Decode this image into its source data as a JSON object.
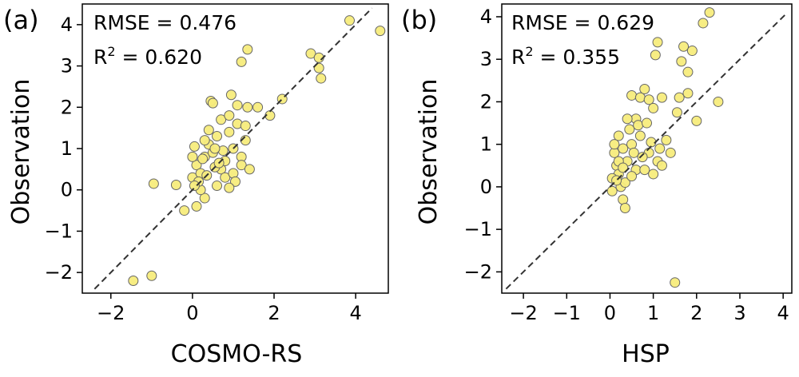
{
  "chart_data": [
    {
      "type": "scatter",
      "panel_label": "(a)",
      "xlabel": "COSMO-RS",
      "ylabel": "Observation",
      "annotations": {
        "rmse": "RMSE = 0.476",
        "r2_prefix": "R",
        "r2_sup": "2",
        "r2_value": " = 0.620"
      },
      "xlim": [
        -2.7,
        4.8
      ],
      "ylim": [
        -2.5,
        4.5
      ],
      "xticks": [
        -2,
        0,
        2,
        4
      ],
      "xtick_labels": [
        "−2",
        "0",
        "2",
        "4"
      ],
      "yticks": [
        -2,
        -1,
        0,
        1,
        2,
        3,
        4
      ],
      "ytick_labels": [
        "−2",
        "−1",
        "0",
        "1",
        "2",
        "3",
        "4"
      ],
      "reference_line": "y = x",
      "points": [
        [
          -1.45,
          -2.2
        ],
        [
          -1.0,
          -2.08
        ],
        [
          -0.95,
          0.15
        ],
        [
          -0.4,
          0.12
        ],
        [
          -0.2,
          -0.5
        ],
        [
          0.0,
          0.3
        ],
        [
          0.05,
          1.05
        ],
        [
          0.1,
          0.6
        ],
        [
          0.2,
          0.4
        ],
        [
          0.3,
          0.8
        ],
        [
          0.4,
          1.1
        ],
        [
          0.5,
          0.9
        ],
        [
          0.6,
          1.3
        ],
        [
          0.7,
          0.5
        ],
        [
          0.8,
          0.7
        ],
        [
          0.9,
          1.4
        ],
        [
          1.0,
          1.0
        ],
        [
          1.1,
          1.6
        ],
        [
          1.2,
          0.8
        ],
        [
          1.3,
          1.2
        ],
        [
          0.45,
          2.15
        ],
        [
          0.5,
          2.1
        ],
        [
          0.95,
          2.3
        ],
        [
          1.1,
          2.05
        ],
        [
          1.35,
          2.0
        ],
        [
          1.6,
          2.0
        ],
        [
          1.9,
          1.8
        ],
        [
          2.2,
          2.2
        ],
        [
          1.2,
          3.1
        ],
        [
          1.35,
          3.4
        ],
        [
          2.9,
          3.3
        ],
        [
          3.1,
          3.2
        ],
        [
          3.1,
          2.95
        ],
        [
          3.15,
          2.7
        ],
        [
          3.85,
          4.1
        ],
        [
          4.6,
          3.85
        ],
        [
          0.1,
          -0.4
        ],
        [
          0.3,
          -0.2
        ],
        [
          0.2,
          0.0
        ],
        [
          0.6,
          0.1
        ],
        [
          0.8,
          0.3
        ],
        [
          1.0,
          0.4
        ],
        [
          1.2,
          0.6
        ],
        [
          1.4,
          0.5
        ],
        [
          0.0,
          0.8
        ],
        [
          0.3,
          1.2
        ],
        [
          0.7,
          1.7
        ],
        [
          0.9,
          1.8
        ],
        [
          1.05,
          0.2
        ],
        [
          0.55,
          0.55
        ],
        [
          0.15,
          0.2
        ],
        [
          0.35,
          0.35
        ],
        [
          0.65,
          0.65
        ],
        [
          0.75,
          0.95
        ],
        [
          0.25,
          0.75
        ],
        [
          0.4,
          1.45
        ],
        [
          0.55,
          1.0
        ],
        [
          1.3,
          1.55
        ],
        [
          0.05,
          0.1
        ],
        [
          0.9,
          0.05
        ]
      ]
    },
    {
      "type": "scatter",
      "panel_label": "(b)",
      "xlabel": "HSP",
      "ylabel": "Observation",
      "annotations": {
        "rmse": "RMSE = 0.629",
        "r2_prefix": "R",
        "r2_sup": "2",
        "r2_value": " = 0.355"
      },
      "xlim": [
        -2.5,
        4.2
      ],
      "ylim": [
        -2.5,
        4.3
      ],
      "xticks": [
        -2,
        -1,
        0,
        1,
        2,
        3,
        4
      ],
      "xtick_labels": [
        "−2",
        "−1",
        "0",
        "1",
        "2",
        "3",
        "4"
      ],
      "yticks": [
        -2,
        -1,
        0,
        1,
        2,
        3,
        4
      ],
      "ytick_labels": [
        "−2",
        "−1",
        "0",
        "1",
        "2",
        "3",
        "4"
      ],
      "reference_line": "y = x",
      "points": [
        [
          2.3,
          4.1
        ],
        [
          2.15,
          3.85
        ],
        [
          1.1,
          3.4
        ],
        [
          1.05,
          3.1
        ],
        [
          1.7,
          3.3
        ],
        [
          1.9,
          3.2
        ],
        [
          1.65,
          2.95
        ],
        [
          1.8,
          2.7
        ],
        [
          2.5,
          2.0
        ],
        [
          1.8,
          2.2
        ],
        [
          1.6,
          2.1
        ],
        [
          1.55,
          1.75
        ],
        [
          2.0,
          1.55
        ],
        [
          1.5,
          -2.25
        ],
        [
          0.5,
          2.15
        ],
        [
          0.7,
          2.1
        ],
        [
          0.8,
          2.3
        ],
        [
          0.9,
          2.05
        ],
        [
          1.2,
          2.1
        ],
        [
          1.0,
          1.85
        ],
        [
          0.6,
          1.6
        ],
        [
          0.4,
          1.6
        ],
        [
          0.2,
          1.2
        ],
        [
          0.3,
          0.9
        ],
        [
          0.5,
          1.0
        ],
        [
          0.7,
          1.2
        ],
        [
          0.9,
          0.8
        ],
        [
          1.1,
          0.6
        ],
        [
          1.3,
          1.1
        ],
        [
          0.1,
          0.8
        ],
        [
          0.15,
          0.5
        ],
        [
          0.2,
          0.3
        ],
        [
          0.25,
          0.0
        ],
        [
          0.3,
          -0.3
        ],
        [
          0.35,
          -0.5
        ],
        [
          0.05,
          0.2
        ],
        [
          0.4,
          0.6
        ],
        [
          0.6,
          0.4
        ],
        [
          0.8,
          0.4
        ],
        [
          1.0,
          0.3
        ],
        [
          1.2,
          0.5
        ],
        [
          0.55,
          0.8
        ],
        [
          0.75,
          0.7
        ],
        [
          0.1,
          1.0
        ],
        [
          0.2,
          0.6
        ],
        [
          0.45,
          1.35
        ],
        [
          0.65,
          1.45
        ],
        [
          1.15,
          0.9
        ],
        [
          0.35,
          0.1
        ],
        [
          0.05,
          -0.1
        ],
        [
          0.15,
          0.15
        ],
        [
          0.3,
          0.45
        ],
        [
          0.5,
          0.25
        ],
        [
          0.85,
          1.5
        ],
        [
          1.4,
          0.8
        ],
        [
          0.95,
          1.05
        ]
      ]
    }
  ]
}
